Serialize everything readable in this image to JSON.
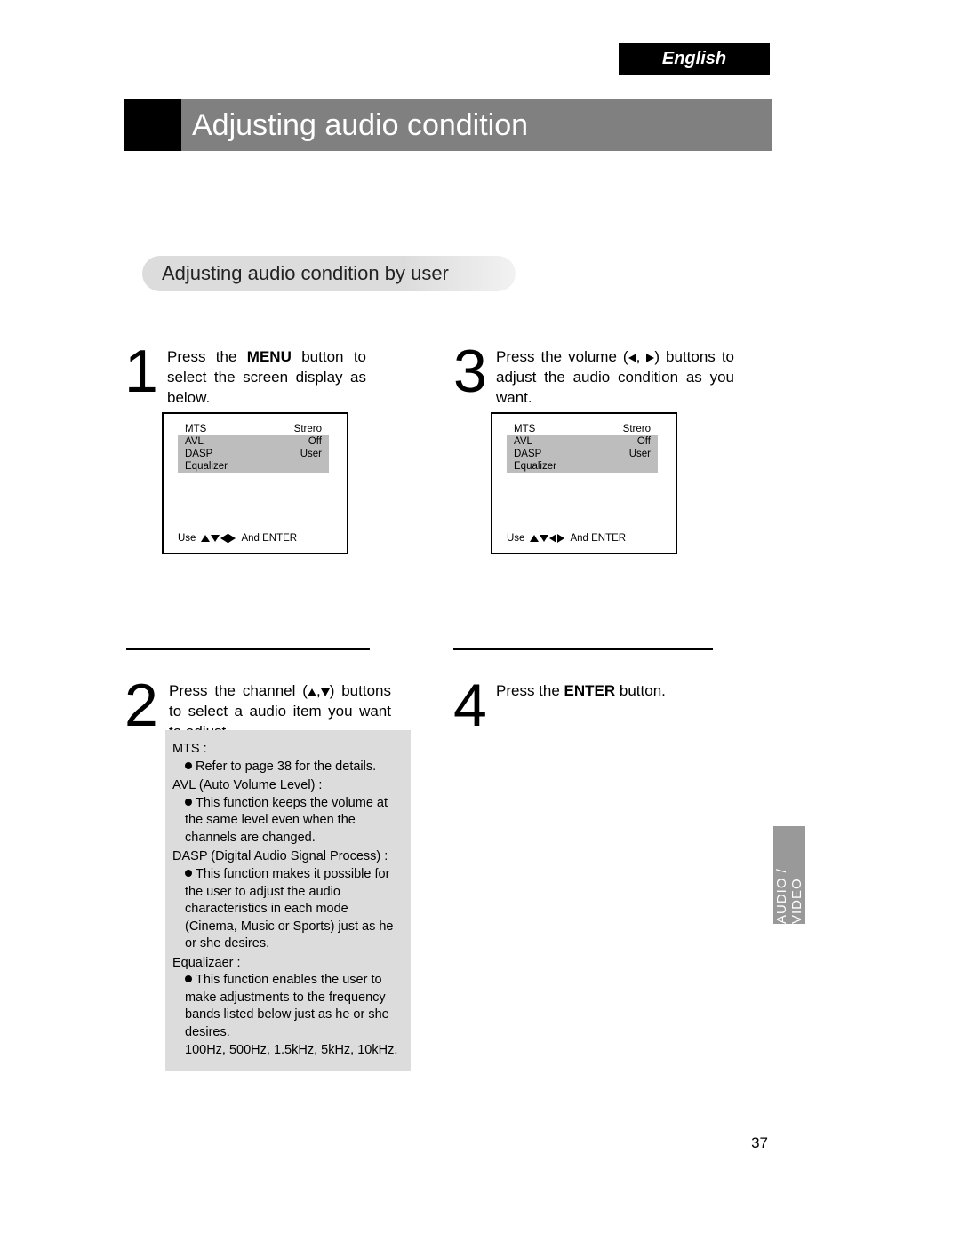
{
  "header": {
    "language_tab": "English",
    "title": "Adjusting audio condition",
    "subtitle": "Adjusting audio condition by user"
  },
  "steps": {
    "s1": {
      "num": "1",
      "text_pre": "Press the ",
      "bold": "MENU",
      "text_post": " button to select the screen display as below."
    },
    "s2": {
      "num": "2",
      "text": "Press the channel (▲,▼) buttons to select a audio item you want to adjust."
    },
    "s3": {
      "num": "3",
      "text": "Press the volume (◀, ▶) buttons to adjust the audio condition as you want."
    },
    "s4": {
      "num": "4",
      "text_pre": "Press the ",
      "bold": "ENTER",
      "text_post": " button."
    }
  },
  "menu": {
    "rows": [
      {
        "label": "MTS",
        "value": "Strero",
        "highlight": true
      },
      {
        "label": "AVL",
        "value": "Off",
        "highlight": false
      },
      {
        "label": "DASP",
        "value": "User",
        "highlight": false
      },
      {
        "label": "Equalizer",
        "value": "",
        "highlight": false
      }
    ],
    "footer_pre": "Use",
    "footer_post": "And ENTER"
  },
  "explain": {
    "mts_title": "MTS :",
    "mts_body": "Refer to page 38 for the details.",
    "avl_title": "AVL (Auto Volume Level) :",
    "avl_body": "This function keeps the volume at the same level even when the channels are changed.",
    "dasp_title": "DASP (Digital Audio Signal Process) :",
    "dasp_body": "This function makes it possible for the user to adjust the audio characteristics in each mode (Cinema, Music or Sports) just as he or she desires.",
    "eq_title": "Equalizaer :",
    "eq_body1": "This function enables the user to make adjustments to the frequency bands listed below just as he or she desires.",
    "eq_body2": "100Hz, 500Hz, 1.5kHz, 5kHz, 10kHz."
  },
  "side_tab": "AUDIO / VIDEO",
  "page_number": "37",
  "colors": {
    "black": "#000000",
    "title_gray": "#808080",
    "panel_gray": "#dcdcdc",
    "menu_gray": "#bdbdbd",
    "side_gray": "#999999",
    "white": "#ffffff"
  }
}
